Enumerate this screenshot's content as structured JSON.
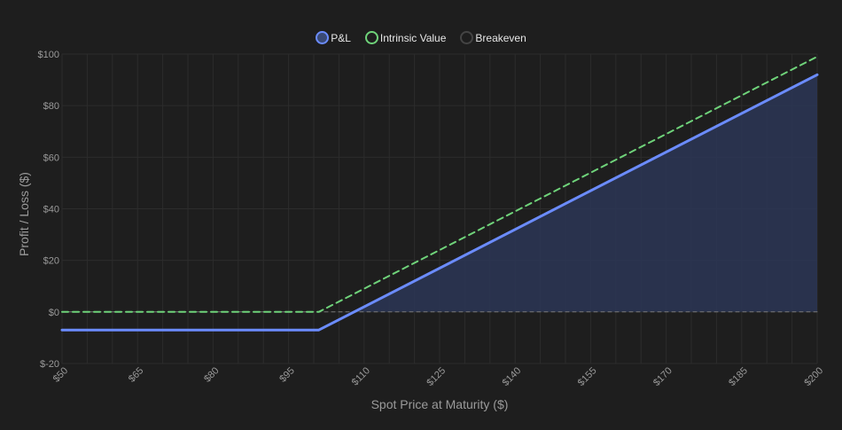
{
  "chart_data": {
    "type": "line",
    "title": "",
    "xlabel": "Spot Price at Maturity ($)",
    "ylabel": "Profit / Loss ($)",
    "xlim": [
      50,
      200
    ],
    "ylim": [
      -20,
      100
    ],
    "x_ticks": [
      50,
      65,
      80,
      95,
      110,
      125,
      140,
      155,
      170,
      185,
      200
    ],
    "x_tick_labels": [
      "$50",
      "$65",
      "$80",
      "$95",
      "$110",
      "$125",
      "$140",
      "$155",
      "$170",
      "$185",
      "$200"
    ],
    "y_ticks": [
      -20,
      0,
      20,
      40,
      60,
      80,
      100
    ],
    "y_tick_labels": [
      "$-20",
      "$0",
      "$20",
      "$40",
      "$60",
      "$80",
      "$100"
    ],
    "grid": true,
    "legend_position": "top-center",
    "series": [
      {
        "name": "P&L",
        "color": "#6b8cff",
        "fill": true,
        "style": "solid",
        "x": [
          50,
          101,
          200
        ],
        "y": [
          -7,
          -7,
          92
        ]
      },
      {
        "name": "Intrinsic Value",
        "color": "#6fd37a",
        "style": "dashed",
        "x": [
          50,
          101,
          200
        ],
        "y": [
          0,
          0,
          99
        ]
      },
      {
        "name": "Breakeven",
        "color": "#777777",
        "style": "dashed",
        "x": [
          50,
          200
        ],
        "y": [
          0,
          0
        ]
      }
    ]
  },
  "legend": {
    "items": [
      {
        "label": "P&L",
        "fill": "#3a4a75",
        "border": "#6b8cff"
      },
      {
        "label": "Intrinsic Value",
        "fill": "#1e1e1e",
        "border": "#6fd37a"
      },
      {
        "label": "Breakeven",
        "fill": "#1e1e1e",
        "border": "#444444"
      }
    ]
  },
  "colors": {
    "background": "#1e1e1e",
    "grid": "#2c2c2c",
    "area_fill": "#2b3656"
  }
}
